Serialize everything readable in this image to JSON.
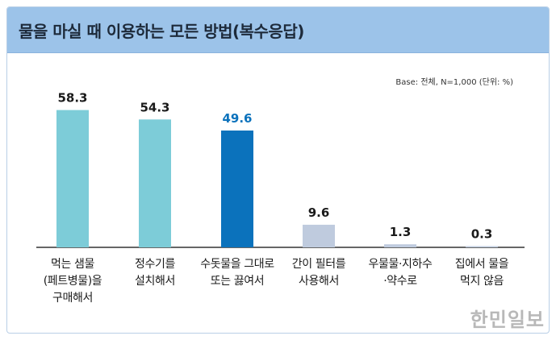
{
  "chart_data": {
    "type": "bar",
    "title": "물을 마실 때 이용하는 모든 방법(복수응답)",
    "note": "Base: 전체, N=1,000 (단위: %)",
    "categories": [
      "먹는 샘물\n(페트병물)을\n구매해서",
      "정수기를\n설치해서",
      "수돗물을 그대로\n또는 끓여서",
      "간이 필터를\n사용해서",
      "우물물·지하수\n·약수로",
      "집에서 물을\n먹지 않음"
    ],
    "values": [
      58.3,
      54.3,
      49.6,
      9.6,
      1.3,
      0.3
    ],
    "value_labels": [
      "58.3",
      "54.3",
      "49.6",
      "9.6",
      "1.3",
      "0.3"
    ],
    "ylim": [
      0,
      65
    ],
    "grid": false,
    "colors": {
      "bars": [
        "#7dccd8",
        "#7dccd8",
        "#0b72bc",
        "#bfcbde",
        "#bfcbde",
        "#bfcbde"
      ],
      "labels": [
        "#1a1a1a",
        "#1a1a1a",
        "#0b72bc",
        "#1a1a1a",
        "#1a1a1a",
        "#1a1a1a"
      ],
      "header": "#9cc3e9",
      "baseline": "#333333"
    }
  },
  "watermark": "한민일보"
}
